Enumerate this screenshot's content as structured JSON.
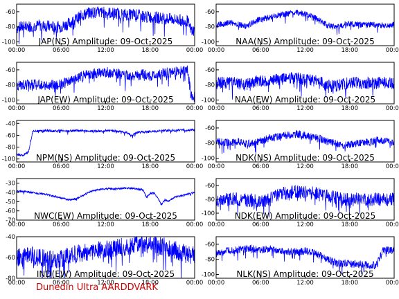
{
  "footer": {
    "credit": "Dunedin Ultra AARDDVARK",
    "credit_color": "#d00000"
  },
  "colors": {
    "trace": "#0000ff",
    "axes": "#000000"
  },
  "chart_data": [
    {
      "type": "line",
      "title": "JAP(NS) Amplitude: 09-Oct-2025",
      "xlabel": "",
      "ylabel": "",
      "xlim": [
        0,
        24
      ],
      "ylim": [
        -105,
        -50
      ],
      "yticks": [
        -100,
        -80,
        -60
      ],
      "xticks": [
        "00:00",
        "06:00",
        "12:00",
        "18:00",
        "00:00"
      ],
      "series": [
        {
          "x": [
            0,
            1,
            2,
            3,
            4,
            5,
            6,
            7,
            8,
            9,
            10,
            11,
            12,
            13,
            14,
            15,
            16,
            17,
            18,
            19,
            20,
            21,
            22,
            23,
            23.5,
            24
          ],
          "y": [
            -82,
            -80,
            -79,
            -78,
            -79,
            -80,
            -80,
            -76,
            -70,
            -64,
            -61,
            -61,
            -61,
            -62,
            -63,
            -64,
            -64,
            -66,
            -67,
            -68,
            -69,
            -70,
            -71,
            -72,
            -84,
            -85
          ],
          "spread": 8
        }
      ]
    },
    {
      "type": "line",
      "title": "NAA(NS) Amplitude: 09-Oct-2025",
      "xlabel": "",
      "ylabel": "",
      "xlim": [
        0,
        24
      ],
      "ylim": [
        -105,
        -50
      ],
      "yticks": [
        -100,
        -80,
        -60
      ],
      "xticks": [
        "00:00",
        "06:00",
        "12:00",
        "18:00",
        "00:00"
      ],
      "series": [
        {
          "x": [
            0,
            1,
            2,
            3,
            4,
            5,
            6,
            7,
            8,
            9,
            10,
            11,
            12,
            13,
            14,
            15,
            16,
            17,
            18,
            19,
            20,
            21,
            22,
            23,
            24
          ],
          "y": [
            -78,
            -76,
            -74,
            -77,
            -80,
            -74,
            -70,
            -68,
            -66,
            -64,
            -62,
            -61,
            -63,
            -66,
            -72,
            -78,
            -80,
            -78,
            -76,
            -77,
            -78,
            -77,
            -78,
            -78,
            -77
          ],
          "spread": 4
        }
      ]
    },
    {
      "type": "line",
      "title": "JAP(EW) Amplitude: 09-Oct-2025",
      "xlabel": "",
      "ylabel": "",
      "xlim": [
        0,
        24
      ],
      "ylim": [
        -105,
        -50
      ],
      "yticks": [
        -100,
        -80,
        -60
      ],
      "xticks": [
        "00:00",
        "06:00",
        "12:00",
        "18:00",
        "00:00"
      ],
      "series": [
        {
          "x": [
            0,
            1,
            2,
            3,
            4,
            5,
            6,
            7,
            8,
            9,
            10,
            11,
            12,
            13,
            14,
            15,
            16,
            17,
            18,
            19,
            20,
            21,
            22,
            23,
            23.5,
            24
          ],
          "y": [
            -80,
            -80,
            -79,
            -80,
            -80,
            -80,
            -79,
            -76,
            -72,
            -68,
            -66,
            -64,
            -63,
            -64,
            -66,
            -67,
            -68,
            -66,
            -68,
            -67,
            -64,
            -63,
            -61,
            -60,
            -92,
            -96
          ],
          "spread": 7
        }
      ]
    },
    {
      "type": "line",
      "title": "NAA(EW) Amplitude: 09-Oct-2025",
      "xlabel": "",
      "ylabel": "",
      "xlim": [
        0,
        24
      ],
      "ylim": [
        -105,
        -50
      ],
      "yticks": [
        -100,
        -80,
        -60
      ],
      "xticks": [
        "00:00",
        "06:00",
        "12:00",
        "18:00",
        "00:00"
      ],
      "series": [
        {
          "x": [
            0,
            1,
            2,
            3,
            4,
            5,
            6,
            7,
            8,
            9,
            10,
            11,
            12,
            13,
            14,
            15,
            16,
            17,
            18,
            19,
            20,
            21,
            22,
            23,
            24
          ],
          "y": [
            -78,
            -77,
            -76,
            -78,
            -80,
            -76,
            -74,
            -74,
            -73,
            -72,
            -71,
            -71,
            -73,
            -74,
            -76,
            -80,
            -82,
            -79,
            -77,
            -77,
            -78,
            -77,
            -77,
            -77,
            -78
          ],
          "spread": 8
        }
      ]
    },
    {
      "type": "line",
      "title": "NPM(NS) Amplitude: 09-Oct-2025",
      "xlabel": "",
      "ylabel": "",
      "xlim": [
        0,
        24
      ],
      "ylim": [
        -105,
        -35
      ],
      "yticks": [
        -100,
        -80,
        -60,
        -40
      ],
      "xticks": [
        "00:00",
        "06:00",
        "12:00",
        "18:00",
        "00:00"
      ],
      "series": [
        {
          "x": [
            0,
            0.8,
            1.6,
            2.2,
            3,
            4,
            5,
            6,
            7,
            8,
            9,
            10,
            11,
            12,
            13,
            14,
            15,
            15.5,
            16,
            16.5,
            17,
            18,
            19,
            20,
            21,
            22,
            23,
            24
          ],
          "y": [
            -92,
            -94,
            -88,
            -52,
            -53,
            -52,
            -53,
            -52,
            -53,
            -52,
            -52,
            -53,
            -53,
            -52,
            -53,
            -54,
            -56,
            -62,
            -56,
            -54,
            -55,
            -54,
            -53,
            -52,
            -52,
            -51,
            -51,
            -51
          ],
          "spread": 2
        }
      ]
    },
    {
      "type": "line",
      "title": "NDK(NS) Amplitude: 09-Oct-2025",
      "xlabel": "",
      "ylabel": "",
      "xlim": [
        0,
        24
      ],
      "ylim": [
        -105,
        -50
      ],
      "yticks": [
        -100,
        -80,
        -60
      ],
      "xticks": [
        "00:00",
        "06:00",
        "12:00",
        "18:00",
        "00:00"
      ],
      "series": [
        {
          "x": [
            0,
            1,
            2,
            3,
            4,
            5,
            6,
            7,
            8,
            9,
            10,
            11,
            12,
            13,
            14,
            15,
            16,
            17,
            18,
            19,
            20,
            21,
            22,
            23,
            24
          ],
          "y": [
            -78,
            -79,
            -80,
            -78,
            -81,
            -80,
            -77,
            -74,
            -72,
            -70,
            -69,
            -68,
            -70,
            -72,
            -74,
            -78,
            -80,
            -83,
            -82,
            -80,
            -79,
            -78,
            -76,
            -77,
            -78
          ],
          "spread": 5
        }
      ]
    },
    {
      "type": "line",
      "title": "NWC(EW) Amplitude: 09-Oct-2025",
      "xlabel": "",
      "ylabel": "",
      "xlim": [
        0,
        24
      ],
      "ylim": [
        -70,
        -25
      ],
      "yticks": [
        -70,
        -60,
        -50,
        -40,
        -30
      ],
      "xticks": [
        "00:00",
        "06:00",
        "12:00",
        "18:00",
        "00:00"
      ],
      "series": [
        {
          "x": [
            0,
            1,
            2,
            3,
            4,
            5,
            6,
            7,
            8,
            9,
            10,
            11,
            12,
            13,
            14,
            15,
            16,
            17,
            17.5,
            18,
            18.5,
            19,
            19.5,
            20,
            20.5,
            21,
            22,
            23,
            24
          ],
          "y": [
            -39,
            -39,
            -40,
            -41,
            -42,
            -44,
            -46,
            -48,
            -47,
            -43,
            -39,
            -37,
            -36,
            -36,
            -36,
            -35,
            -36,
            -37,
            -45,
            -41,
            -40,
            -46,
            -53,
            -48,
            -50,
            -46,
            -44,
            -42,
            -40
          ],
          "spread": 1
        }
      ]
    },
    {
      "type": "line",
      "title": "NDK(EW) Amplitude: 09-Oct-2025",
      "xlabel": "",
      "ylabel": "",
      "xlim": [
        0,
        24
      ],
      "ylim": [
        -110,
        -50
      ],
      "yticks": [
        -100,
        -80,
        -60
      ],
      "xticks": [
        "00:00",
        "06:00",
        "12:00",
        "18:00",
        "00:00"
      ],
      "series": [
        {
          "x": [
            0,
            1,
            2,
            3,
            4,
            5,
            6,
            7,
            8,
            9,
            10,
            11,
            12,
            13,
            14,
            15,
            16,
            17,
            18,
            19,
            20,
            21,
            22,
            23,
            24
          ],
          "y": [
            -82,
            -81,
            -80,
            -80,
            -81,
            -82,
            -84,
            -80,
            -76,
            -72,
            -70,
            -69,
            -70,
            -71,
            -72,
            -74,
            -77,
            -80,
            -81,
            -80,
            -80,
            -80,
            -80,
            -80,
            -80
          ],
          "spread": 10
        }
      ]
    },
    {
      "type": "line",
      "title": "IND(EW) Amplitude: 09-Oct-2025",
      "xlabel": "",
      "ylabel": "",
      "xlim": [
        0,
        24
      ],
      "ylim": [
        -80,
        -40
      ],
      "yticks": [
        -80,
        -60,
        -40
      ],
      "xticks": [
        "00:00",
        "06:00",
        "12:00",
        "18:00",
        "00:00"
      ],
      "series": [
        {
          "x": [
            0,
            1,
            2,
            3,
            4,
            5,
            6,
            7,
            8,
            9,
            10,
            11,
            12,
            13,
            14,
            15,
            16,
            17,
            18,
            19,
            20,
            21,
            22,
            23,
            24
          ],
          "y": [
            -60,
            -59,
            -58,
            -60,
            -62,
            -62,
            -61,
            -59,
            -57,
            -56,
            -54,
            -53,
            -52,
            -51,
            -50,
            -49,
            -47,
            -46,
            -47,
            -48,
            -50,
            -52,
            -55,
            -57,
            -58
          ],
          "spread": 9
        }
      ]
    },
    {
      "type": "line",
      "title": "NLK(NS) Amplitude: 09-Oct-2025",
      "xlabel": "",
      "ylabel": "",
      "xlim": [
        0,
        24
      ],
      "ylim": [
        -105,
        -50
      ],
      "yticks": [
        -100,
        -80,
        -60
      ],
      "xticks": [
        "00:00",
        "06:00",
        "12:00",
        "18:00",
        "00:00"
      ],
      "series": [
        {
          "x": [
            0,
            1,
            2,
            3,
            4,
            5,
            6,
            7,
            8,
            9,
            10,
            11,
            12,
            13,
            14,
            15,
            16,
            17,
            18,
            19,
            20,
            21,
            21.5,
            22,
            22.5,
            23,
            24
          ],
          "y": [
            -72,
            -70,
            -68,
            -68,
            -66,
            -66,
            -68,
            -66,
            -67,
            -69,
            -70,
            -70,
            -69,
            -71,
            -74,
            -80,
            -84,
            -85,
            -86,
            -86,
            -87,
            -88,
            -88,
            -80,
            -68,
            -68,
            -68
          ],
          "spread": 5
        }
      ]
    }
  ]
}
